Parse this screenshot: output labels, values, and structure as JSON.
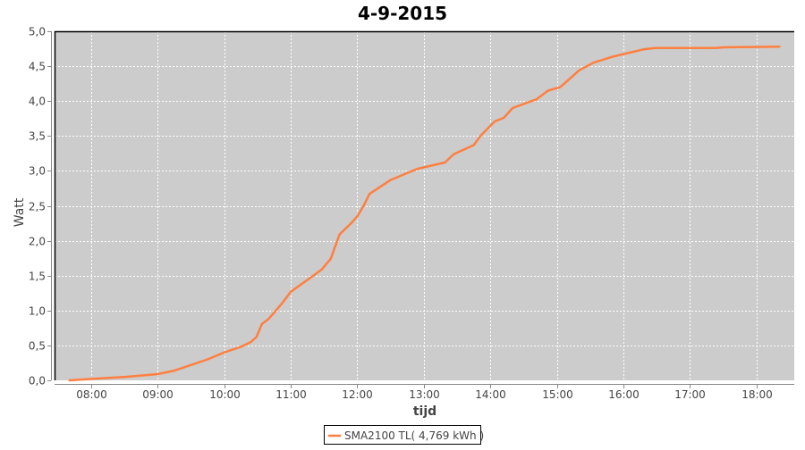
{
  "chart_data": {
    "type": "line",
    "title": "4-9-2015",
    "xlabel": "tijd",
    "ylabel": "Watt",
    "xlim": [
      "07:27",
      "18:34"
    ],
    "ylim": [
      0,
      5
    ],
    "x_ticks": [
      "08:00",
      "09:00",
      "10:00",
      "11:00",
      "12:00",
      "13:00",
      "14:00",
      "15:00",
      "16:00",
      "17:00",
      "18:00"
    ],
    "y_ticks": [
      "0,0",
      "0,5",
      "1,0",
      "1,5",
      "2,0",
      "2,5",
      "3,0",
      "3,5",
      "4,0",
      "4,5",
      "5,0"
    ],
    "grid": true,
    "legend_position": "bottom",
    "plot_background": "#cccccc",
    "series": [
      {
        "name": "SMA2100 TL( 4,769 kWh )",
        "color": "#ff7f3f",
        "points": [
          [
            "07:40",
            0
          ],
          [
            "08:00",
            0.02
          ],
          [
            "08:31",
            0.05
          ],
          [
            "09:00",
            0.09
          ],
          [
            "09:15",
            0.14
          ],
          [
            "09:30",
            0.22
          ],
          [
            "09:45",
            0.3
          ],
          [
            "10:00",
            0.4
          ],
          [
            "10:15",
            0.48
          ],
          [
            "10:24",
            0.55
          ],
          [
            "10:29",
            0.62
          ],
          [
            "10:34",
            0.81
          ],
          [
            "10:40",
            0.88
          ],
          [
            "10:45",
            0.97
          ],
          [
            "10:53",
            1.12
          ],
          [
            "11:00",
            1.27
          ],
          [
            "11:16",
            1.45
          ],
          [
            "11:28",
            1.59
          ],
          [
            "11:36",
            1.74
          ],
          [
            "11:44",
            2.09
          ],
          [
            "11:55",
            2.26
          ],
          [
            "12:00",
            2.35
          ],
          [
            "12:06",
            2.51
          ],
          [
            "12:11",
            2.67
          ],
          [
            "12:30",
            2.87
          ],
          [
            "12:54",
            3.03
          ],
          [
            "13:19",
            3.12
          ],
          [
            "13:27",
            3.24
          ],
          [
            "13:45",
            3.37
          ],
          [
            "13:51",
            3.5
          ],
          [
            "14:04",
            3.71
          ],
          [
            "14:12",
            3.76
          ],
          [
            "14:20",
            3.9
          ],
          [
            "14:42",
            4.03
          ],
          [
            "14:52",
            4.15
          ],
          [
            "15:03",
            4.2
          ],
          [
            "15:20",
            4.44
          ],
          [
            "15:33",
            4.55
          ],
          [
            "15:49",
            4.63
          ],
          [
            "16:02",
            4.68
          ],
          [
            "16:18",
            4.74
          ],
          [
            "16:29",
            4.76
          ],
          [
            "17:23",
            4.76
          ],
          [
            "17:31",
            4.77
          ],
          [
            "18:21",
            4.78
          ]
        ]
      }
    ]
  }
}
